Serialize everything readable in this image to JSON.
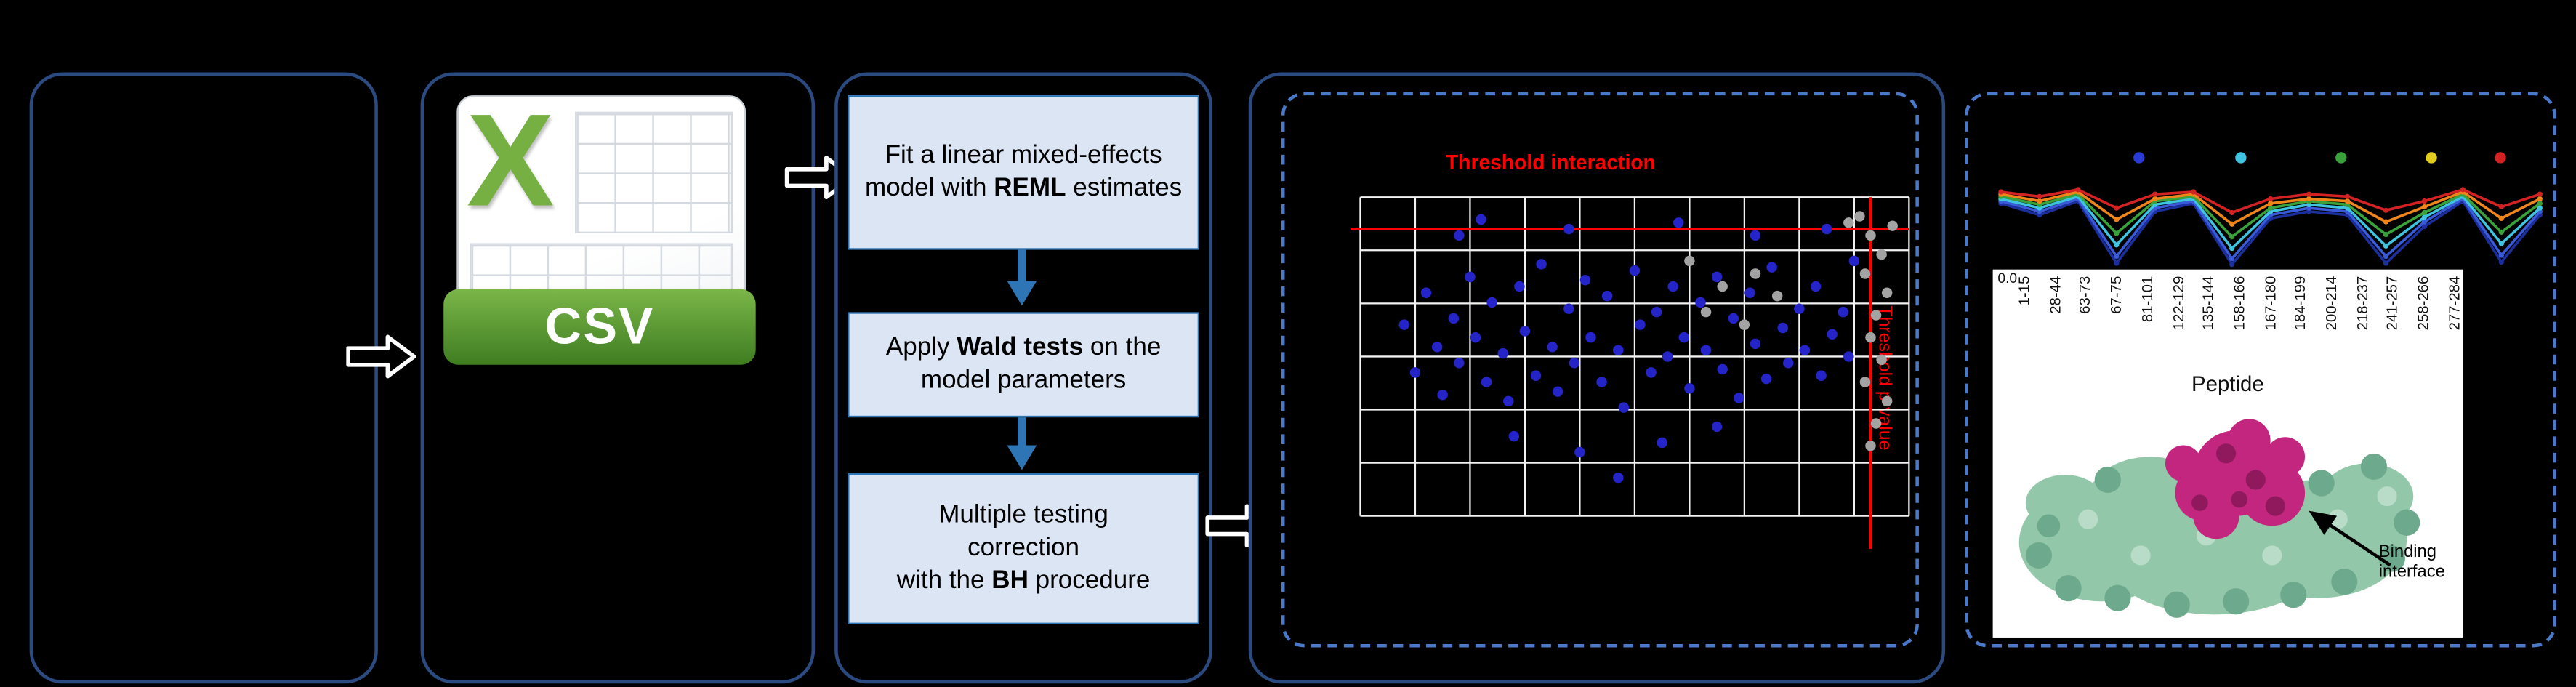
{
  "pipeline": {
    "csv_icon": {
      "letter": "X",
      "banner": "CSV"
    },
    "steps": [
      {
        "pre": "Fit a linear mixed-effects model with ",
        "bold": "REML",
        "post": " estimates"
      },
      {
        "pre": "Apply ",
        "bold": "Wald tests",
        "post": " on the model parameters"
      },
      {
        "pre": "Multiple testing\ncorrection\nwith the ",
        "bold": "BH",
        "post": " procedure"
      }
    ]
  },
  "chart_data": [
    {
      "type": "scatter",
      "title": "Threshold interaction",
      "right_axis_label": "Threshold p-value",
      "grid": true,
      "threshold_lines": {
        "horizontal_pct": 10,
        "vertical_pct": 93,
        "color": "#ff0000"
      },
      "series": [
        {
          "name": "significant-blue",
          "color": "#2424c8",
          "points": [
            [
              8,
              40
            ],
            [
              10,
              55
            ],
            [
              12,
              30
            ],
            [
              14,
              47
            ],
            [
              15,
              62
            ],
            [
              17,
              38
            ],
            [
              18,
              52
            ],
            [
              20,
              25
            ],
            [
              21,
              44
            ],
            [
              23,
              58
            ],
            [
              24,
              33
            ],
            [
              26,
              49
            ],
            [
              27,
              64
            ],
            [
              29,
              28
            ],
            [
              30,
              42
            ],
            [
              32,
              56
            ],
            [
              33,
              21
            ],
            [
              35,
              47
            ],
            [
              36,
              61
            ],
            [
              38,
              35
            ],
            [
              39,
              52
            ],
            [
              41,
              26
            ],
            [
              42,
              44
            ],
            [
              44,
              58
            ],
            [
              45,
              31
            ],
            [
              47,
              48
            ],
            [
              48,
              66
            ],
            [
              50,
              23
            ],
            [
              51,
              40
            ],
            [
              53,
              55
            ],
            [
              54,
              36
            ],
            [
              56,
              50
            ],
            [
              57,
              28
            ],
            [
              59,
              44
            ],
            [
              60,
              60
            ],
            [
              62,
              33
            ],
            [
              63,
              48
            ],
            [
              65,
              25
            ],
            [
              66,
              54
            ],
            [
              68,
              38
            ],
            [
              69,
              63
            ],
            [
              71,
              30
            ],
            [
              72,
              46
            ],
            [
              74,
              57
            ],
            [
              75,
              22
            ],
            [
              77,
              41
            ],
            [
              78,
              52
            ],
            [
              80,
              35
            ],
            [
              81,
              48
            ],
            [
              83,
              28
            ],
            [
              84,
              56
            ],
            [
              86,
              43
            ],
            [
              88,
              36
            ],
            [
              89,
              50
            ],
            [
              28,
              75
            ],
            [
              40,
              80
            ],
            [
              55,
              77
            ],
            [
              18,
              12
            ],
            [
              38,
              10
            ],
            [
              58,
              8
            ],
            [
              72,
              12
            ],
            [
              85,
              10
            ],
            [
              47,
              88
            ],
            [
              65,
              72
            ],
            [
              22,
              7
            ],
            [
              90,
              20
            ]
          ]
        },
        {
          "name": "not-significant-gray",
          "color": "#a3a3a3",
          "points": [
            [
              91,
              6
            ],
            [
              93,
              12
            ],
            [
              95,
              18
            ],
            [
              92,
              24
            ],
            [
              96,
              30
            ],
            [
              94,
              37
            ],
            [
              93,
              44
            ],
            [
              95,
              51
            ],
            [
              92,
              58
            ],
            [
              96,
              64
            ],
            [
              94,
              71
            ],
            [
              93,
              78
            ],
            [
              60,
              20
            ],
            [
              66,
              28
            ],
            [
              72,
              24
            ],
            [
              63,
              36
            ],
            [
              70,
              40
            ],
            [
              76,
              31
            ],
            [
              97,
              9
            ],
            [
              89,
              8
            ]
          ]
        }
      ]
    },
    {
      "type": "line",
      "xlabel": "Peptide",
      "y_tick_label": "0.0",
      "categories": [
        "1-15",
        "28-44",
        "63-73",
        "67-75",
        "81-101",
        "122-129",
        "135-144",
        "158-166",
        "167-180",
        "184-199",
        "200-214",
        "218-237",
        "241-257",
        "258-266",
        "277-284"
      ],
      "legend_dots": [
        "#2a3bd6",
        "#3ec4e0",
        "#3aa23a",
        "#e0cd1e",
        "#d42222"
      ],
      "series": [
        {
          "name": "navy",
          "color": "#1c2f9e",
          "values": [
            0.56,
            0.46,
            0.58,
            0.04,
            0.49,
            0.56,
            0.03,
            0.43,
            0.49,
            0.46,
            0.04,
            0.36,
            0.58,
            0.05,
            0.46
          ]
        },
        {
          "name": "blue",
          "color": "#3a5bd9",
          "values": [
            0.58,
            0.49,
            0.6,
            0.1,
            0.52,
            0.58,
            0.08,
            0.46,
            0.52,
            0.49,
            0.1,
            0.4,
            0.6,
            0.11,
            0.49
          ]
        },
        {
          "name": "cyan",
          "color": "#3ec4e0",
          "values": [
            0.6,
            0.52,
            0.62,
            0.2,
            0.55,
            0.6,
            0.17,
            0.49,
            0.55,
            0.52,
            0.19,
            0.44,
            0.62,
            0.21,
            0.52
          ]
        },
        {
          "name": "green",
          "color": "#3aa23a",
          "values": [
            0.62,
            0.55,
            0.64,
            0.3,
            0.58,
            0.62,
            0.27,
            0.52,
            0.58,
            0.55,
            0.29,
            0.48,
            0.64,
            0.31,
            0.56
          ]
        },
        {
          "name": "orange",
          "color": "#f08519",
          "values": [
            0.64,
            0.58,
            0.66,
            0.42,
            0.6,
            0.64,
            0.38,
            0.56,
            0.6,
            0.58,
            0.4,
            0.53,
            0.66,
            0.43,
            0.6
          ]
        },
        {
          "name": "red",
          "color": "#d42222",
          "values": [
            0.66,
            0.62,
            0.68,
            0.52,
            0.64,
            0.66,
            0.48,
            0.6,
            0.64,
            0.62,
            0.5,
            0.58,
            0.68,
            0.53,
            0.64
          ]
        }
      ]
    }
  ],
  "protein_panel": {
    "annotation": "Binding interface"
  }
}
